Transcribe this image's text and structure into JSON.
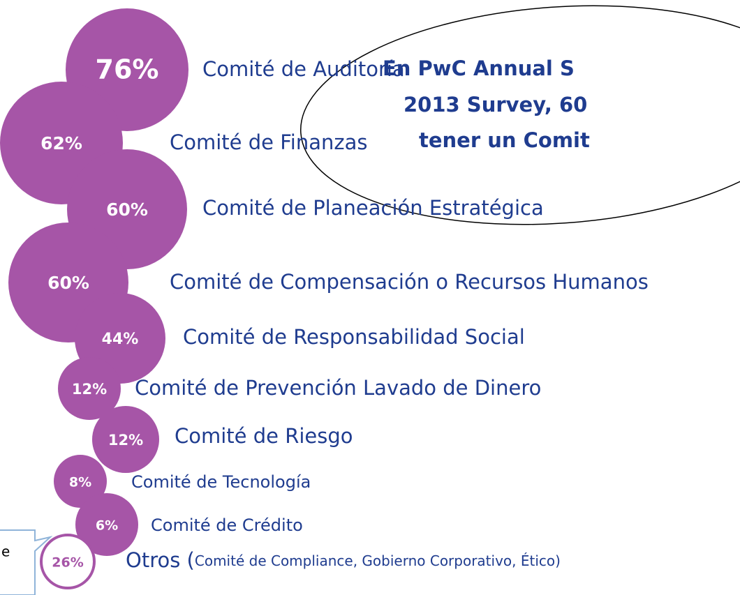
{
  "chart_data": {
    "type": "bubble",
    "categories": [
      "Comité de Auditoría",
      "Comité de Finanzas",
      "Comité de Planeación Estratégica",
      "Comité de Compensación o Recursos Humanos",
      "Comité de Responsabilidad Social",
      "Comité de Prevención Lavado de Dinero",
      "Comité de Riesgo",
      "Comité de Tecnología",
      "Comité de Crédito",
      "Otros ("
    ],
    "values": [
      76,
      62,
      60,
      60,
      44,
      12,
      12,
      8,
      6,
      26
    ],
    "value_labels": [
      "76%",
      "62%",
      "60%",
      "60%",
      "44%",
      "12%",
      "12%",
      "8%",
      "6%",
      "26%"
    ],
    "color": "#a655a7",
    "other_detail": "Comité de Compliance, Gobierno Corporativo, Ético)",
    "annotations": [
      "En PwC Annual S",
      "2013 Survey, 60",
      "tener un Comit",
      "e"
    ]
  }
}
